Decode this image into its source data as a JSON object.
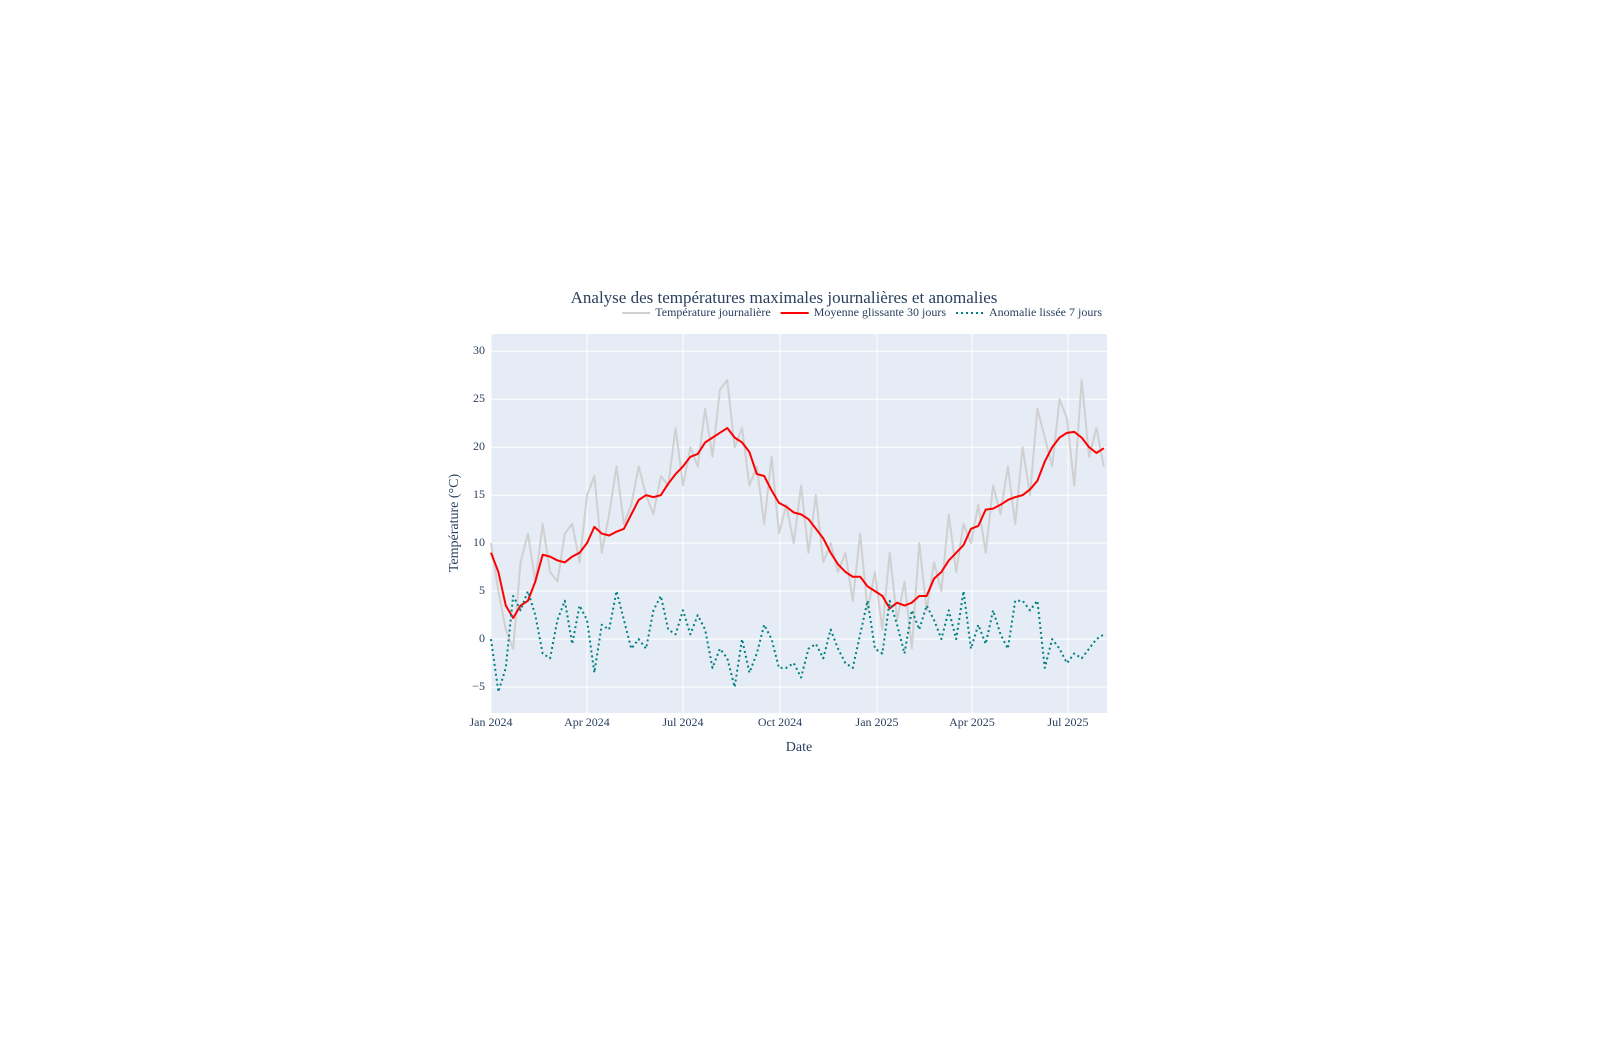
{
  "chart_data": {
    "type": "line",
    "title": "Analyse des températures maximales journalières et anomalies",
    "x_label": "Date",
    "y_label": "Température (°C)",
    "legend": "top-right",
    "grid": true,
    "x": [
      "2024-01-01",
      "2024-01-08",
      "2024-01-15",
      "2024-01-22",
      "2024-01-29",
      "2024-02-05",
      "2024-02-12",
      "2024-02-19",
      "2024-02-26",
      "2024-03-04",
      "2024-03-11",
      "2024-03-18",
      "2024-03-25",
      "2024-04-01",
      "2024-04-08",
      "2024-04-15",
      "2024-04-22",
      "2024-04-29",
      "2024-05-06",
      "2024-05-13",
      "2024-05-20",
      "2024-05-27",
      "2024-06-03",
      "2024-06-10",
      "2024-06-17",
      "2024-06-24",
      "2024-07-01",
      "2024-07-08",
      "2024-07-15",
      "2024-07-22",
      "2024-07-29",
      "2024-08-05",
      "2024-08-12",
      "2024-08-19",
      "2024-08-26",
      "2024-09-02",
      "2024-09-09",
      "2024-09-16",
      "2024-09-23",
      "2024-09-30",
      "2024-10-07",
      "2024-10-14",
      "2024-10-21",
      "2024-10-28",
      "2024-11-04",
      "2024-11-11",
      "2024-11-18",
      "2024-11-25",
      "2024-12-02",
      "2024-12-09",
      "2024-12-16",
      "2024-12-23",
      "2024-12-30",
      "2025-01-06",
      "2025-01-13",
      "2025-01-20",
      "2025-01-27",
      "2025-02-03",
      "2025-02-10",
      "2025-02-17",
      "2025-02-24",
      "2025-03-03",
      "2025-03-10",
      "2025-03-17",
      "2025-03-24",
      "2025-03-31",
      "2025-04-07",
      "2025-04-14",
      "2025-04-21",
      "2025-04-28",
      "2025-05-05",
      "2025-05-12",
      "2025-05-19",
      "2025-05-26",
      "2025-06-02",
      "2025-06-09",
      "2025-06-16",
      "2025-06-23",
      "2025-06-30",
      "2025-07-07",
      "2025-07-14",
      "2025-07-21",
      "2025-07-28",
      "2025-08-04"
    ],
    "series": [
      {
        "name": "Température journalière",
        "color": "#d0d0d0",
        "dash": "solid",
        "width": 2,
        "values": [
          10,
          5,
          1,
          -1,
          8,
          11,
          6,
          12,
          7,
          6,
          11,
          12,
          8,
          15,
          17,
          9,
          13,
          18,
          12,
          14,
          18,
          15,
          13,
          17,
          16,
          22,
          16,
          20,
          18,
          24,
          19,
          26,
          27,
          20,
          22,
          16,
          18,
          12,
          19,
          11,
          14,
          10,
          16,
          9,
          15,
          8,
          10,
          7,
          9,
          4,
          11,
          3,
          7,
          1,
          9,
          2,
          6,
          -1,
          10,
          3,
          8,
          5,
          13,
          7,
          12,
          10,
          14,
          9,
          16,
          13,
          18,
          12,
          20,
          15,
          24,
          21,
          18,
          25,
          23,
          16,
          27,
          19,
          22,
          18
        ]
      },
      {
        "name": "Moyenne glissante 30 jours",
        "color": "#ff0000",
        "dash": "solid",
        "width": 2,
        "values": [
          9,
          7,
          3.5,
          2.2,
          3.5,
          4,
          6,
          8.8,
          8.6,
          8.2,
          8,
          8.6,
          9,
          10,
          11.7,
          11,
          10.8,
          11.2,
          11.5,
          13,
          14.5,
          15,
          14.8,
          15,
          16.2,
          17.2,
          18,
          19,
          19.3,
          20.5,
          21,
          21.5,
          22,
          21,
          20.5,
          19.5,
          17.2,
          17,
          15.5,
          14.2,
          13.8,
          13.2,
          13,
          12.5,
          11.5,
          10.5,
          9,
          7.8,
          7,
          6.5,
          6.5,
          5.5,
          5,
          4.5,
          3.2,
          3.8,
          3.5,
          3.8,
          4.5,
          4.5,
          6.3,
          7,
          8.2,
          9,
          9.8,
          11.5,
          11.8,
          13.5,
          13.6,
          14,
          14.5,
          14.8,
          15,
          15.6,
          16.5,
          18.5,
          20,
          21,
          21.5,
          21.6,
          21,
          20,
          19.4,
          19.9
        ]
      },
      {
        "name": "Anomalie lissée 7 jours",
        "color": "#008080",
        "dash": "dot",
        "width": 2,
        "values": [
          0,
          -5.5,
          -3,
          4.5,
          3,
          5,
          2.5,
          -1.5,
          -2,
          2,
          4,
          -0.5,
          3.5,
          2,
          -3.5,
          1.5,
          1,
          5,
          2,
          -1,
          0,
          -1,
          3,
          4.5,
          1,
          0.5,
          3,
          0.5,
          2.5,
          1,
          -3,
          -1,
          -2,
          -5,
          0,
          -3.5,
          -1.5,
          1.5,
          0,
          -3,
          -3,
          -2.5,
          -4,
          -1,
          -0.5,
          -2,
          1,
          -1,
          -2.5,
          -3,
          0.5,
          4,
          -1,
          -1.5,
          4,
          1.5,
          -1.5,
          3,
          1,
          3.5,
          2,
          0,
          3,
          0,
          5,
          -1,
          1.5,
          -0.5,
          3,
          0.5,
          -1,
          4,
          4,
          3,
          4,
          -3,
          0,
          -1,
          -2.5,
          -1.5,
          -2,
          -1,
          0,
          0.5
        ]
      }
    ],
    "xlim": [
      "2024-01-01",
      "2025-08-07"
    ],
    "xticks": [
      {
        "value": "2024-01-01",
        "label": "Jan 2024"
      },
      {
        "value": "2024-04-01",
        "label": "Apr 2024"
      },
      {
        "value": "2024-07-01",
        "label": "Jul 2024"
      },
      {
        "value": "2024-10-01",
        "label": "Oct 2024"
      },
      {
        "value": "2025-01-01",
        "label": "Jan 2025"
      },
      {
        "value": "2025-04-01",
        "label": "Apr 2025"
      },
      {
        "value": "2025-07-01",
        "label": "Jul 2025"
      }
    ],
    "ylim": [
      -7.7,
      31.8
    ],
    "yticks": [
      {
        "value": -5,
        "label": "−5"
      },
      0,
      5,
      10,
      15,
      20,
      25,
      30
    ]
  }
}
